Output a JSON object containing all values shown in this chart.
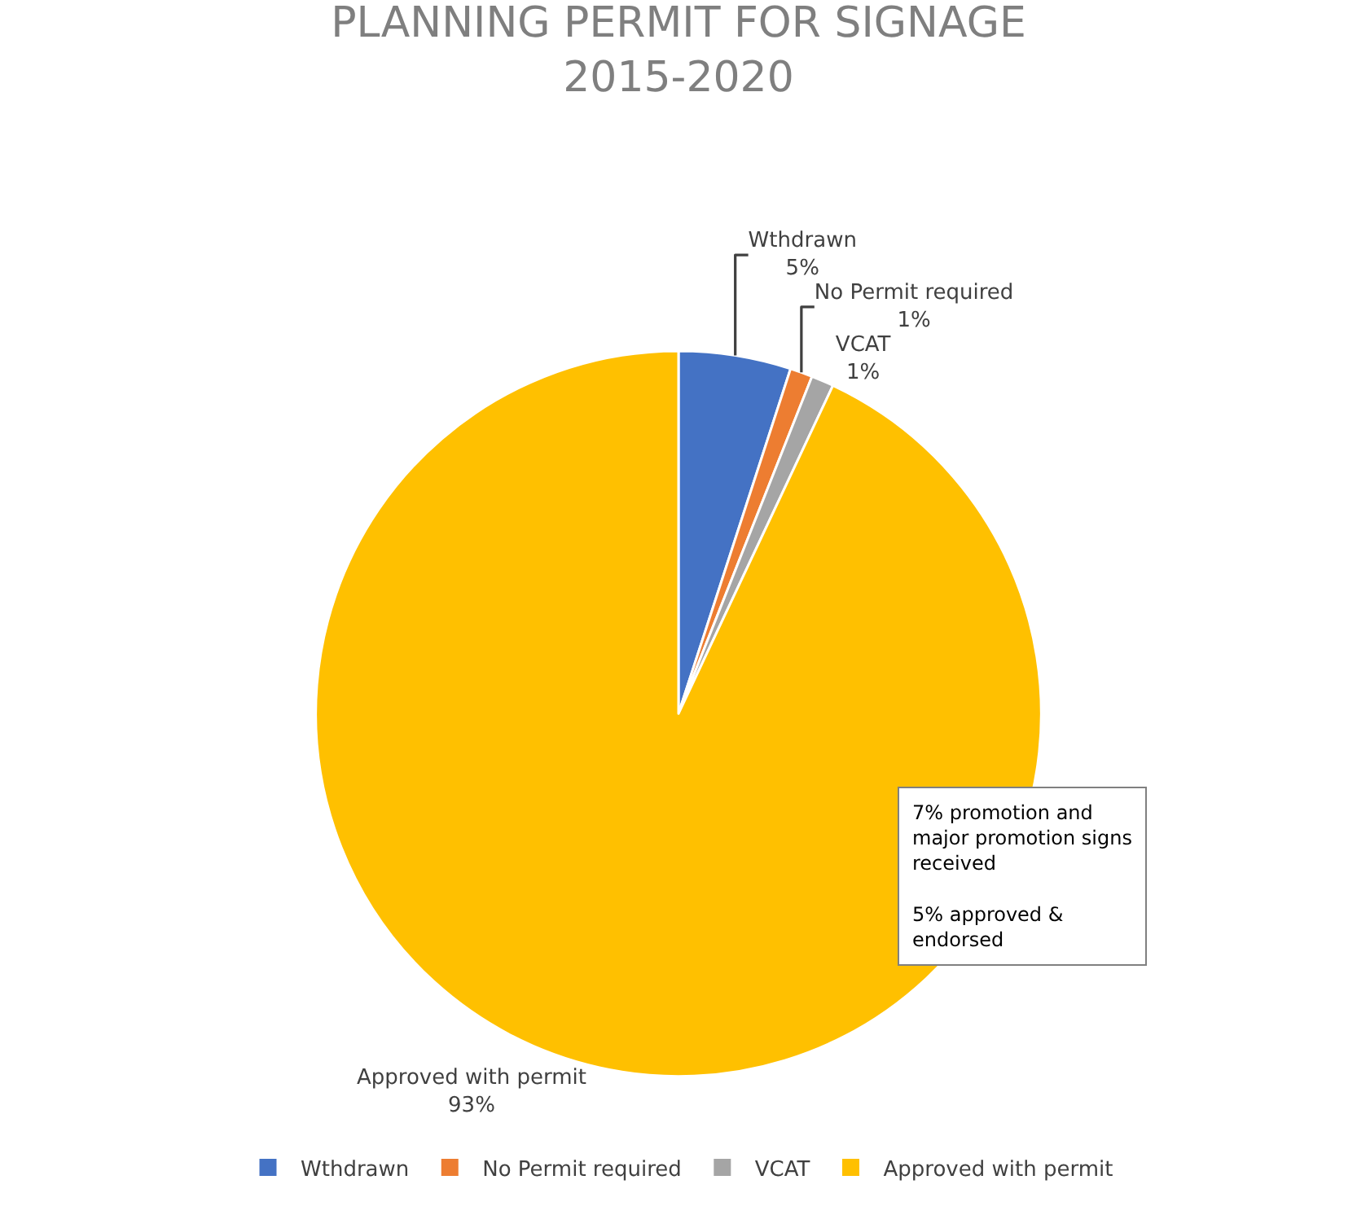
{
  "chart_data": {
    "type": "pie",
    "title": "PLANNING PERMIT FOR SIGNAGE\n2015-2020",
    "categories": [
      "Wthdrawn",
      "No Permit required",
      "VCAT",
      "Approved with permit"
    ],
    "values": [
      5,
      1,
      1,
      93
    ],
    "value_labels": [
      "5%",
      "1%",
      "1%",
      "93%"
    ],
    "colors": [
      "#4472c4",
      "#ed7d31",
      "#a5a5a5",
      "#ffc000"
    ],
    "legend": "bottom",
    "annotations": [
      "7% promotion and\nmajor promotion signs\nreceived\n\n5% approved &\nendorsed"
    ]
  }
}
